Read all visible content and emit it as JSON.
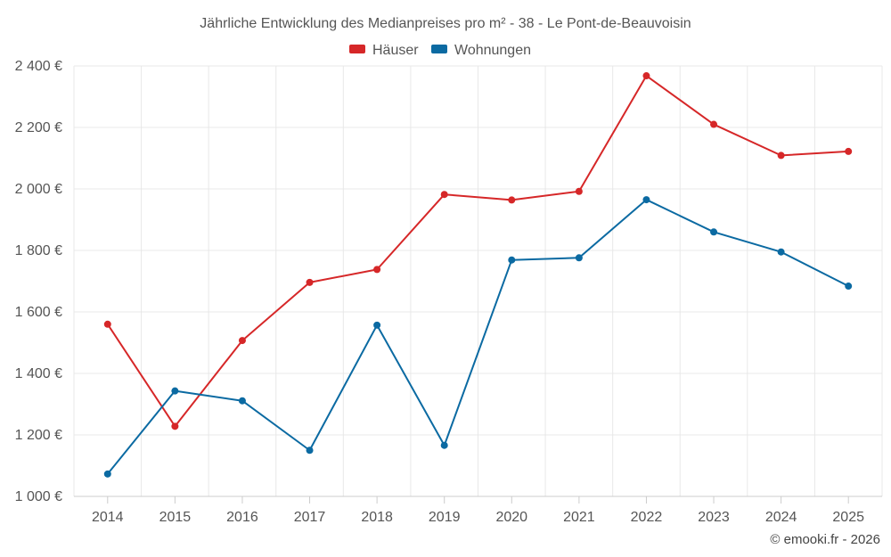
{
  "chart_data": {
    "type": "line",
    "title": "Jährliche Entwicklung des Medianpreises pro m² - 38 - Le Pont-de-Beauvoisin",
    "categories": [
      "2014",
      "2015",
      "2016",
      "2017",
      "2018",
      "2019",
      "2020",
      "2021",
      "2022",
      "2023",
      "2024",
      "2025"
    ],
    "series": [
      {
        "name": "Häuser",
        "color": "#d62728",
        "values": [
          1560,
          1228,
          1507,
          1696,
          1738,
          1982,
          1964,
          1992,
          2368,
          2210,
          2109,
          2122
        ]
      },
      {
        "name": "Wohnungen",
        "color": "#0b6aa2",
        "values": [
          1073,
          1343,
          1311,
          1150,
          1557,
          1166,
          1769,
          1776,
          1965,
          1860,
          1795,
          1684
        ]
      }
    ],
    "ylim": [
      1000,
      2400
    ],
    "yticks": [
      1000,
      1200,
      1400,
      1600,
      1800,
      2000,
      2200,
      2400
    ],
    "ytick_labels": [
      "1 000 €",
      "1 200 €",
      "1 400 €",
      "1 600 €",
      "1 800 €",
      "2 000 €",
      "2 200 €",
      "2 400 €"
    ],
    "xlabel": "",
    "ylabel": "",
    "grid": true,
    "legend_position": "top-center",
    "credit": "© emooki.fr - 2026"
  }
}
